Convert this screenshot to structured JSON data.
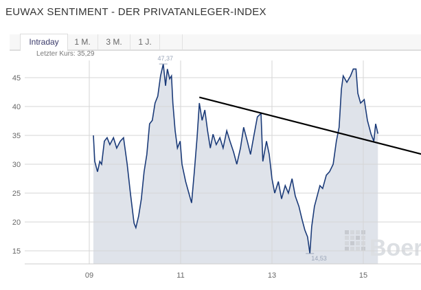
{
  "title": "EUWAX SENTIMENT - DER PRIVATANLEGER-INDEX",
  "tabs": [
    {
      "label": "Intraday",
      "active": true
    },
    {
      "label": "1 M."
    },
    {
      "label": "3 M."
    },
    {
      "label": "1 J."
    }
  ],
  "last_price": "Letzter Kurs: 35,29",
  "watermark": "Boerse",
  "colors": {
    "line": "#1a3a78",
    "area": "#dfe3ea",
    "grid": "#d6d6d6",
    "trend": "#000000"
  },
  "chart_data": {
    "type": "area",
    "xlabel": "",
    "ylabel": "",
    "xlim": [
      8.9,
      16.3
    ],
    "ylim": [
      12.7,
      48.3
    ],
    "x_ticks": [
      {
        "v": 9,
        "label": "09"
      },
      {
        "v": 11,
        "label": "11"
      },
      {
        "v": 13,
        "label": "13"
      },
      {
        "v": 15,
        "label": "15"
      }
    ],
    "y_ticks": [
      15,
      20,
      25,
      30,
      35,
      40,
      45
    ],
    "grid": true,
    "max_label": {
      "x": 10.62,
      "y": 47.37,
      "text": "47,37"
    },
    "min_label": {
      "x": 13.83,
      "y": 14.53,
      "text": "14,53"
    },
    "trendline": {
      "from": [
        11.41,
        41.6
      ],
      "to": [
        16.3,
        31.7
      ]
    },
    "points": [
      [
        9.09,
        35
      ],
      [
        9.12,
        30.5
      ],
      [
        9.18,
        28.7
      ],
      [
        9.23,
        30.5
      ],
      [
        9.27,
        30
      ],
      [
        9.33,
        34
      ],
      [
        9.39,
        34.6
      ],
      [
        9.45,
        33.4
      ],
      [
        9.53,
        34.6
      ],
      [
        9.6,
        32.8
      ],
      [
        9.68,
        34
      ],
      [
        9.75,
        34.6
      ],
      [
        9.83,
        30
      ],
      [
        9.9,
        25
      ],
      [
        9.98,
        19.8
      ],
      [
        10.02,
        19
      ],
      [
        10.08,
        21
      ],
      [
        10.14,
        24
      ],
      [
        10.2,
        28.7
      ],
      [
        10.26,
        31.7
      ],
      [
        10.32,
        37
      ],
      [
        10.38,
        37.6
      ],
      [
        10.44,
        40.6
      ],
      [
        10.5,
        41.8
      ],
      [
        10.56,
        45.3
      ],
      [
        10.62,
        47.37
      ],
      [
        10.67,
        43.6
      ],
      [
        10.71,
        46.5
      ],
      [
        10.76,
        44.8
      ],
      [
        10.8,
        45.3
      ],
      [
        10.83,
        40.6
      ],
      [
        10.88,
        35.8
      ],
      [
        10.93,
        32.8
      ],
      [
        10.99,
        34
      ],
      [
        11.03,
        30
      ],
      [
        11.11,
        27
      ],
      [
        11.18,
        25
      ],
      [
        11.24,
        23.3
      ],
      [
        11.3,
        28.7
      ],
      [
        11.36,
        34.6
      ],
      [
        11.41,
        40.6
      ],
      [
        11.47,
        37.6
      ],
      [
        11.53,
        39.4
      ],
      [
        11.59,
        35.8
      ],
      [
        11.65,
        32.8
      ],
      [
        11.71,
        35.2
      ],
      [
        11.78,
        33.4
      ],
      [
        11.86,
        34.6
      ],
      [
        11.93,
        32.8
      ],
      [
        12.01,
        35.8
      ],
      [
        12.08,
        34
      ],
      [
        12.16,
        32.1
      ],
      [
        12.23,
        30
      ],
      [
        12.31,
        32.8
      ],
      [
        12.38,
        36.4
      ],
      [
        12.46,
        34
      ],
      [
        12.53,
        31.7
      ],
      [
        12.61,
        35.2
      ],
      [
        12.68,
        38.2
      ],
      [
        12.76,
        38.8
      ],
      [
        12.8,
        30.5
      ],
      [
        12.88,
        34
      ],
      [
        12.94,
        31.7
      ],
      [
        13,
        27.5
      ],
      [
        13.06,
        25
      ],
      [
        13.14,
        27
      ],
      [
        13.21,
        24
      ],
      [
        13.29,
        26.3
      ],
      [
        13.36,
        25
      ],
      [
        13.44,
        27.5
      ],
      [
        13.51,
        24.5
      ],
      [
        13.59,
        22.7
      ],
      [
        13.66,
        20.4
      ],
      [
        13.72,
        18.6
      ],
      [
        13.78,
        17.4
      ],
      [
        13.83,
        14.53
      ],
      [
        13.87,
        19.2
      ],
      [
        13.93,
        22.7
      ],
      [
        13.99,
        24.5
      ],
      [
        14.05,
        26.3
      ],
      [
        14.11,
        25.8
      ],
      [
        14.19,
        28.1
      ],
      [
        14.26,
        28.7
      ],
      [
        14.34,
        30
      ],
      [
        14.41,
        34
      ],
      [
        14.47,
        36.4
      ],
      [
        14.52,
        43
      ],
      [
        14.56,
        45.3
      ],
      [
        14.64,
        44.2
      ],
      [
        14.72,
        45.3
      ],
      [
        14.78,
        46.5
      ],
      [
        14.84,
        46.5
      ],
      [
        14.88,
        42.3
      ],
      [
        14.94,
        40.6
      ],
      [
        15.02,
        41.2
      ],
      [
        15.09,
        37.6
      ],
      [
        15.17,
        35.2
      ],
      [
        15.23,
        34
      ],
      [
        15.27,
        37
      ],
      [
        15.32,
        35.29
      ]
    ]
  }
}
